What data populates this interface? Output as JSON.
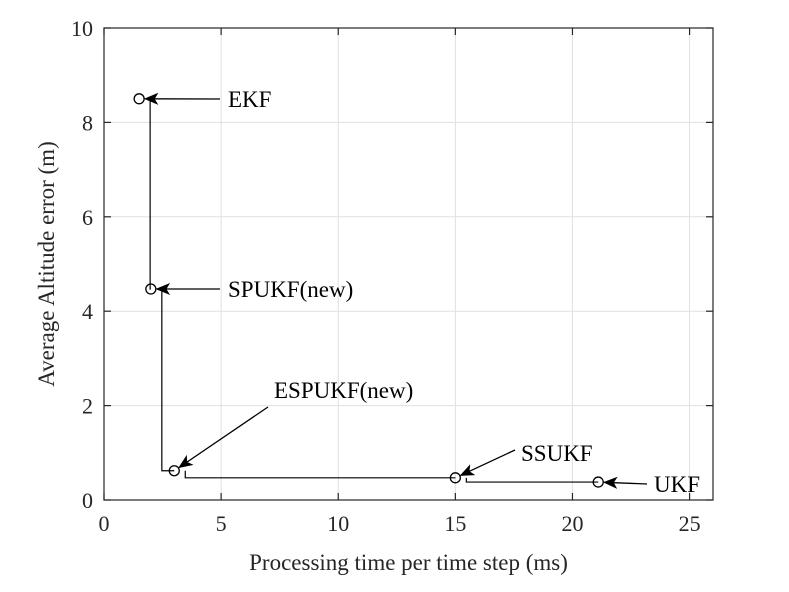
{
  "chart_data": {
    "type": "scatter",
    "title": "",
    "xlabel": "Processing time per time step (ms)",
    "ylabel": "Average Altitude error (m)",
    "xlim": [
      0,
      26
    ],
    "ylim": [
      0,
      10
    ],
    "xticks": [
      "0",
      "5",
      "10",
      "15",
      "20",
      "25"
    ],
    "yticks": [
      "0",
      "2",
      "4",
      "6",
      "8",
      "10"
    ],
    "grid": true,
    "points": [
      {
        "label": "EKF",
        "x": 1.5,
        "y": 8.5
      },
      {
        "label": "SPUKF(new)",
        "x": 2.0,
        "y": 4.47
      },
      {
        "label": "ESPUKF(new)",
        "x": 3.0,
        "y": 0.62
      },
      {
        "label": "SSUKF",
        "x": 15.0,
        "y": 0.47
      },
      {
        "label": "UKF",
        "x": 21.1,
        "y": 0.38
      }
    ],
    "step_line_color": "#000000",
    "marker_color": "#000000",
    "grid_color": "#e0e0e0"
  }
}
